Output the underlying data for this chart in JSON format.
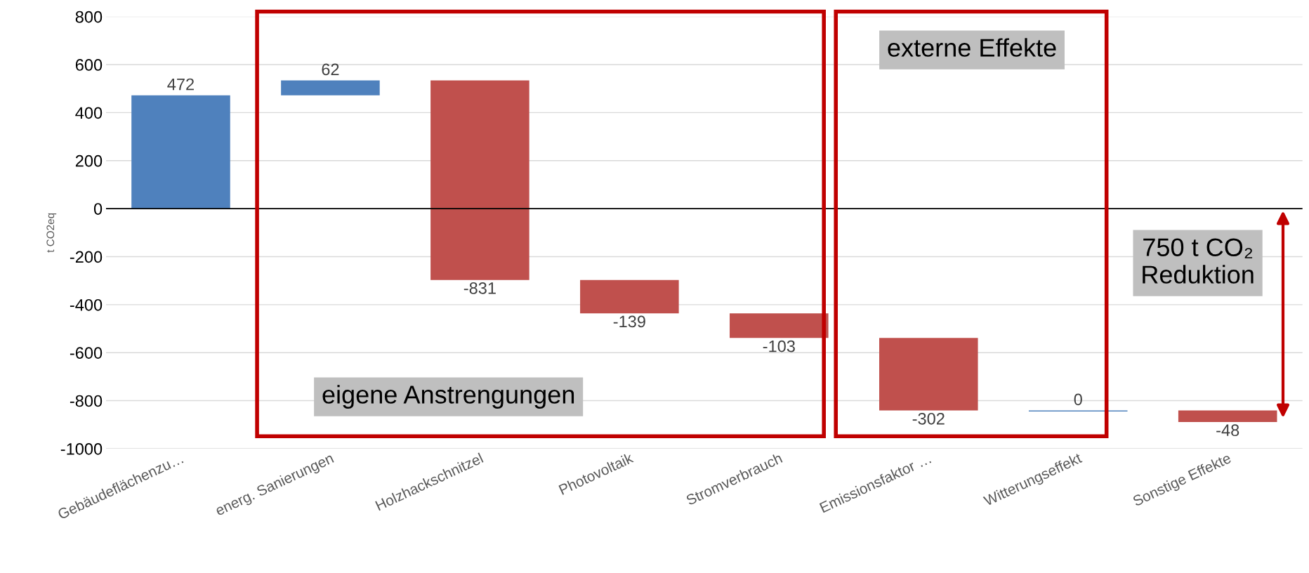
{
  "chart_data": {
    "type": "bar",
    "categories": [
      "Gebäudeflächenzu…",
      "energ. Sanierungen",
      "Holzhackschnitzel",
      "Photovoltaik",
      "Stromverbrauch",
      "Emissionsfaktor …",
      "Witterungseffekt",
      "Sonstige Effekte"
    ],
    "values": [
      472,
      62,
      -831,
      -139,
      -103,
      -302,
      0,
      -48
    ],
    "base": [
      0,
      472,
      534,
      -297,
      -436,
      -539,
      -841,
      -841
    ],
    "colors": [
      "#4f81bd",
      "#4f81bd",
      "#c0504d",
      "#c0504d",
      "#c0504d",
      "#c0504d",
      "#4f81bd",
      "#c0504d"
    ],
    "data_labels": true,
    "ylabel": "t CO2eq",
    "ylim": [
      -1000,
      800
    ],
    "yticks": [
      -1000,
      -800,
      -600,
      -400,
      -200,
      0,
      200,
      400,
      600,
      800
    ],
    "grid": "y",
    "ref_lines": [
      {
        "axis": "y",
        "value": 0,
        "color": "#000000"
      }
    ],
    "annotations": [
      "eigene Anstrengungen",
      "externe Effekte",
      "750 t CO₂ Reduktion"
    ]
  }
}
